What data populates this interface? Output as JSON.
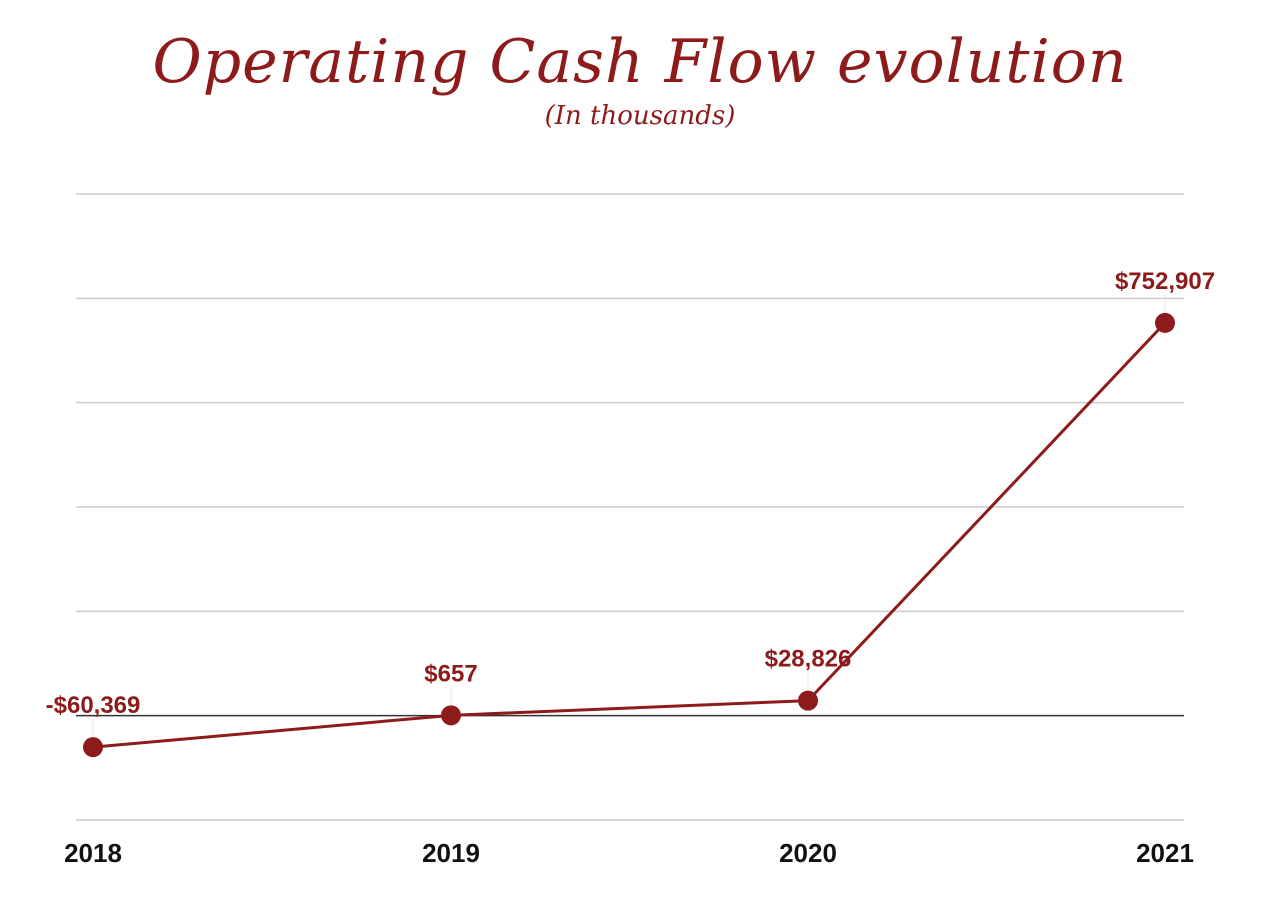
{
  "chart_data": {
    "type": "line",
    "title": "Operating Cash Flow evolution",
    "subtitle": "(In thousands)",
    "xlabel": "",
    "ylabel": "",
    "categories": [
      "2018",
      "2019",
      "2020",
      "2021"
    ],
    "series": [
      {
        "name": "Operating Cash Flow",
        "values": [
          -60369,
          657,
          28826,
          752907
        ],
        "labels": [
          "-$60,369",
          "$657",
          "$28,826",
          "$752,907"
        ],
        "color": "#8e1b1b"
      }
    ],
    "ylim": [
      -200000,
      1000000
    ],
    "gridlines": [
      1000000,
      800000,
      600000,
      400000,
      200000,
      0,
      -200000
    ],
    "grid": true,
    "y_tick_labels_visible": false,
    "legend": "none"
  },
  "colors": {
    "accent": "#8e1b1b",
    "grid": "#cccccc",
    "zero_line": "#333333",
    "axis_text": "#111111"
  }
}
